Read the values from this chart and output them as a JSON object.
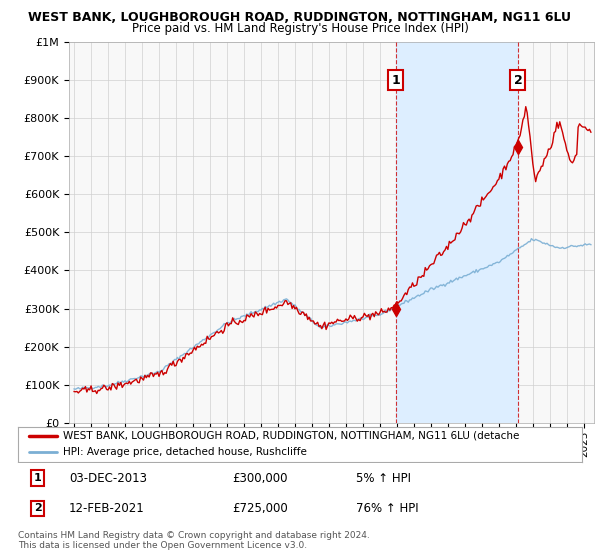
{
  "title": "WEST BANK, LOUGHBOROUGH ROAD, RUDDINGTON, NOTTINGHAM, NG11 6LU",
  "subtitle": "Price paid vs. HM Land Registry's House Price Index (HPI)",
  "ylim": [
    0,
    1000000
  ],
  "yticks": [
    0,
    100000,
    200000,
    300000,
    400000,
    500000,
    600000,
    700000,
    800000,
    900000,
    1000000
  ],
  "ytick_labels": [
    "£0",
    "£100K",
    "£200K",
    "£300K",
    "£400K",
    "£500K",
    "£600K",
    "£700K",
    "£800K",
    "£900K",
    "£1M"
  ],
  "legend_entries": [
    "WEST BANK, LOUGHBOROUGH ROAD, RUDDINGTON, NOTTINGHAM, NG11 6LU (detache",
    "HPI: Average price, detached house, Rushcliffe"
  ],
  "legend_colors": [
    "#cc0000",
    "#7bafd4"
  ],
  "marker1_year": 2013.917,
  "marker1_price": 300000,
  "marker2_year": 2021.12,
  "marker2_price": 725000,
  "shade_color": "#ddeeff",
  "footer_line1": "Contains HM Land Registry data © Crown copyright and database right 2024.",
  "footer_line2": "This data is licensed under the Open Government Licence v3.0.",
  "bg_color": "#ffffff",
  "grid_color": "#d0d0d0",
  "plot_bg_color": "#f8f8f8"
}
